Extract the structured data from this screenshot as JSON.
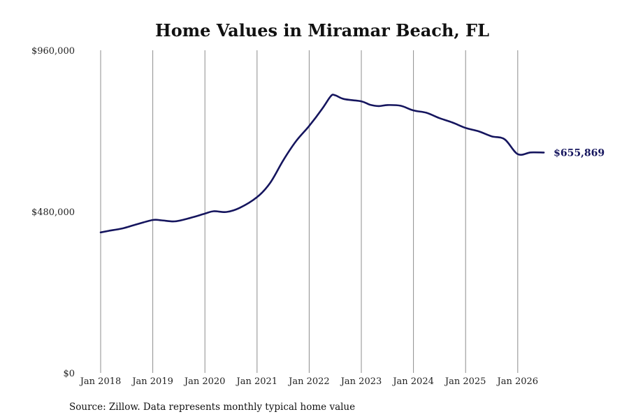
{
  "chart_data": {
    "type": "line",
    "title": "Home Values in Miramar Beach, FL",
    "source": "Source: Zillow. Data represents monthly typical home value",
    "ylim": [
      0,
      960000
    ],
    "yticks": [
      {
        "value": 0,
        "label": "$0"
      },
      {
        "value": 480000,
        "label": "$480,000"
      },
      {
        "value": 960000,
        "label": "$960,000"
      }
    ],
    "xlim": [
      "2018-01",
      "2026-07"
    ],
    "xticks": [
      {
        "value": "2018-01",
        "label": "Jan 2018"
      },
      {
        "value": "2019-01",
        "label": "Jan 2019"
      },
      {
        "value": "2020-01",
        "label": "Jan 2020"
      },
      {
        "value": "2021-01",
        "label": "Jan 2021"
      },
      {
        "value": "2022-01",
        "label": "Jan 2022"
      },
      {
        "value": "2023-01",
        "label": "Jan 2023"
      },
      {
        "value": "2024-01",
        "label": "Jan 2024"
      },
      {
        "value": "2025-01",
        "label": "Jan 2025"
      },
      {
        "value": "2026-01",
        "label": "Jan 2026"
      }
    ],
    "grid": "vertical",
    "line_color": "#15155e",
    "end_label": "$655,869",
    "series": [
      {
        "x": [
          "2018-01",
          "2018-03",
          "2018-06",
          "2018-09",
          "2019-01",
          "2019-03",
          "2019-06",
          "2019-09",
          "2020-01",
          "2020-03",
          "2020-06",
          "2020-09",
          "2021-01",
          "2021-04",
          "2021-07",
          "2021-10",
          "2022-01",
          "2022-04",
          "2022-06",
          "2022-07",
          "2022-09",
          "2023-01",
          "2023-03",
          "2023-05",
          "2023-07",
          "2023-10",
          "2024-01",
          "2024-04",
          "2024-07",
          "2024-10",
          "2025-01",
          "2025-04",
          "2025-07",
          "2025-10",
          "2026-01",
          "2026-04",
          "2026-07"
        ],
        "values": [
          418000,
          423000,
          430000,
          441000,
          455000,
          454000,
          451000,
          459000,
          474000,
          481000,
          479000,
          491000,
          523000,
          565000,
          632000,
          690000,
          735000,
          786000,
          824000,
          826000,
          815000,
          808000,
          798000,
          794000,
          797000,
          795000,
          781000,
          774000,
          758000,
          745000,
          729000,
          719000,
          704000,
          695000,
          651000,
          656000,
          655869
        ]
      }
    ]
  }
}
